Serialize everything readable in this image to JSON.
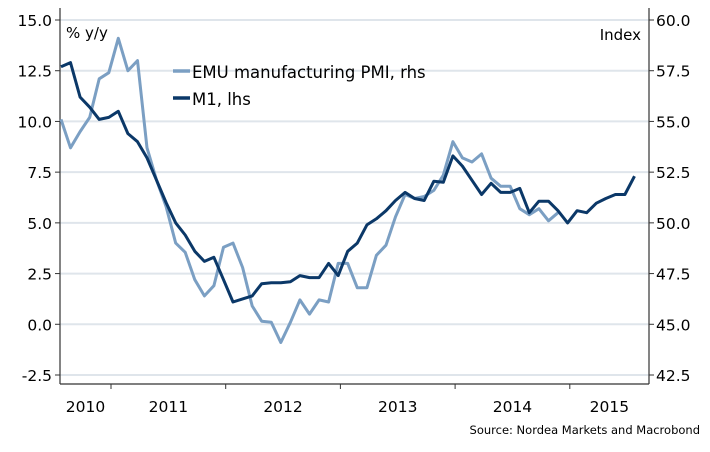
{
  "chart_data": {
    "type": "line",
    "title": "",
    "left_axis_label": "% y/y",
    "right_axis_label": "Index",
    "ylim_left": [
      -2.5,
      15.0
    ],
    "ylim_right": [
      42.5,
      60.0
    ],
    "left_ticks": [
      "15.0",
      "12.5",
      "10.0",
      "7.5",
      "5.0",
      "2.5",
      "0.0",
      "-2.5"
    ],
    "right_ticks": [
      "60.0",
      "57.5",
      "55.0",
      "52.5",
      "50.0",
      "47.5",
      "45.0",
      "42.5"
    ],
    "x_tick_labels": [
      "2010",
      "2011",
      "2012",
      "2013",
      "2014",
      "2015"
    ],
    "x_start": "2010-08",
    "x_frequency": "monthly",
    "grid": true,
    "legend_position": "top-center",
    "source": "Source: Nordea Markets and Macrobond",
    "colors": {
      "pmi": "#7b9fc3",
      "m1": "#0b3868",
      "grid": "#dfe5eb"
    },
    "series": [
      {
        "name": "EMU manufacturing PMI, rhs",
        "axis": "right",
        "values": [
          55.1,
          53.7,
          54.5,
          55.2,
          57.1,
          57.4,
          59.1,
          57.5,
          58.0,
          53.7,
          52.1,
          50.8,
          49.0,
          48.55,
          47.2,
          46.4,
          46.9,
          48.8,
          49.0,
          47.8,
          45.9,
          45.15,
          45.1,
          44.1,
          45.1,
          46.2,
          45.5,
          46.2,
          46.1,
          48.0,
          48.0,
          46.8,
          46.8,
          48.4,
          48.9,
          50.3,
          51.4,
          51.2,
          51.3,
          51.6,
          52.35,
          54.0,
          53.2,
          53.0,
          53.4,
          52.2,
          51.8,
          51.8,
          50.7,
          50.4,
          50.7,
          50.1,
          50.5
        ]
      },
      {
        "name": "M1, lhs",
        "axis": "left",
        "values": [
          12.7,
          12.9,
          11.2,
          10.7,
          10.1,
          10.2,
          10.5,
          9.4,
          9.0,
          8.2,
          7.1,
          6.0,
          5.0,
          4.4,
          3.6,
          3.1,
          3.3,
          2.2,
          1.1,
          1.25,
          1.4,
          2.0,
          2.05,
          2.05,
          2.1,
          2.4,
          2.3,
          2.3,
          3.0,
          2.4,
          3.6,
          4.0,
          4.9,
          5.2,
          5.6,
          6.1,
          6.5,
          6.2,
          6.1,
          7.05,
          7.0,
          8.3,
          7.8,
          7.1,
          6.4,
          6.95,
          6.5,
          6.5,
          6.7,
          5.5,
          6.07,
          6.07,
          5.6,
          5.0,
          5.6,
          5.5,
          5.97,
          6.2,
          6.4,
          6.4,
          7.3
        ]
      }
    ]
  }
}
